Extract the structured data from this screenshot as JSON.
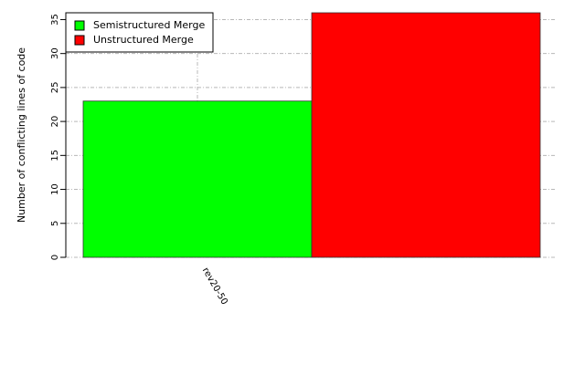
{
  "chart_data": {
    "type": "bar",
    "y_label": "Number of conflicting lines of code",
    "categories": [
      "rev20-50"
    ],
    "series": [
      {
        "name": "Semistructured Merge",
        "color": "#00ff00",
        "values": [
          23
        ]
      },
      {
        "name": "Unstructured Merge",
        "color": "#ff0000",
        "values": [
          36
        ]
      }
    ],
    "ylim": [
      0,
      36
    ],
    "yticks": [
      0,
      5,
      10,
      15,
      20,
      25,
      30,
      35
    ],
    "grid": true,
    "legend": "top-left"
  }
}
